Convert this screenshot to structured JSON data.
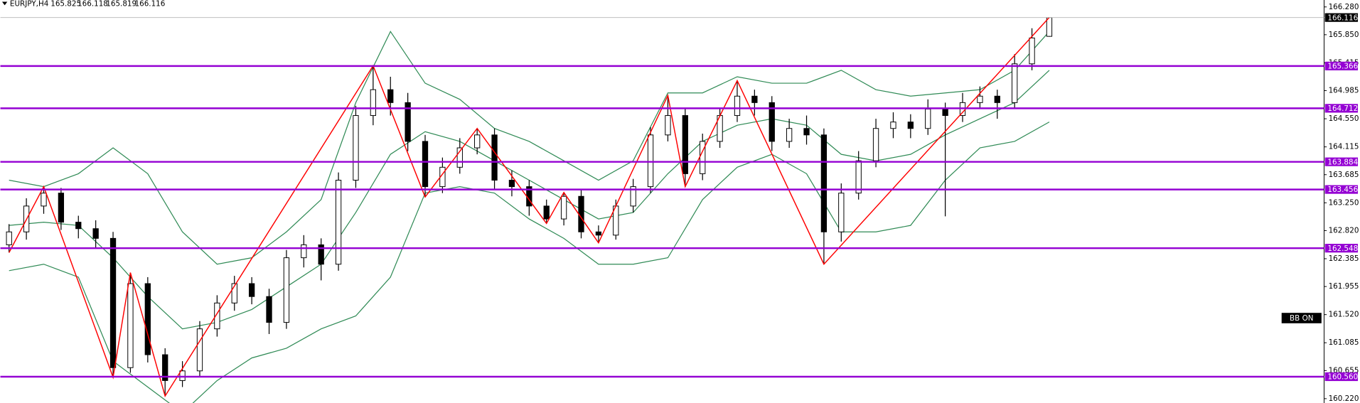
{
  "chart_data": {
    "type": "candlestick",
    "symbol": "EURJPY,H4",
    "indicator_badge": "BB ON",
    "bull_color": "#ffffff",
    "bear_color": "#000000",
    "ylim": [
      160.22,
      166.28
    ],
    "yticks": [
      {
        "value": 166.28,
        "label": "166.280"
      },
      {
        "value": 165.85,
        "label": "165.850"
      },
      165.415,
      164.985,
      {
        "value": 164.55,
        "label": "164.550"
      },
      164.115,
      163.685,
      {
        "value": 163.25,
        "label": "163.250"
      },
      {
        "value": 162.82,
        "label": "162.820"
      },
      162.385,
      161.955,
      {
        "value": 161.52,
        "label": "161.520"
      },
      161.085,
      160.655,
      {
        "value": 160.22,
        "label": "160.220"
      }
    ],
    "open": [
      162.6,
      162.8,
      163.2,
      163.4,
      162.95,
      162.85,
      162.7,
      160.7,
      162.0,
      160.9,
      160.5,
      160.65,
      161.3,
      161.7,
      162.0,
      161.8,
      161.4,
      162.4,
      162.6,
      162.3,
      163.6,
      164.6,
      165.0,
      164.8,
      164.2,
      163.5,
      163.8,
      164.1,
      164.3,
      163.6,
      163.5,
      163.2,
      163.0,
      163.35,
      162.8,
      162.75,
      163.2,
      163.5,
      164.3,
      164.6,
      163.7,
      164.2,
      164.6,
      164.9,
      164.8,
      164.2,
      164.4,
      164.3,
      162.8,
      163.4,
      163.9,
      164.4,
      164.5,
      164.4,
      164.7,
      164.6,
      164.8,
      164.9,
      164.8,
      165.4,
      165.825
    ],
    "high": [
      162.92,
      163.32,
      163.5,
      163.48,
      163.05,
      162.98,
      162.8,
      162.17,
      162.1,
      161.0,
      160.8,
      161.42,
      161.82,
      162.12,
      162.1,
      161.92,
      162.52,
      162.75,
      162.7,
      163.72,
      164.75,
      165.37,
      165.2,
      164.95,
      164.3,
      163.95,
      164.25,
      164.4,
      164.4,
      163.75,
      163.6,
      163.3,
      163.41,
      163.45,
      162.9,
      163.3,
      163.62,
      164.42,
      164.91,
      164.7,
      164.32,
      164.72,
      165.14,
      165.0,
      164.9,
      164.55,
      164.6,
      164.4,
      163.55,
      164.05,
      164.55,
      164.65,
      164.62,
      164.85,
      164.8,
      164.95,
      165.05,
      165.0,
      165.55,
      165.95,
      166.118
    ],
    "low": [
      162.48,
      162.68,
      163.08,
      162.83,
      162.7,
      162.55,
      160.55,
      160.62,
      160.78,
      160.26,
      160.4,
      160.55,
      161.18,
      161.58,
      161.68,
      161.22,
      161.3,
      162.25,
      162.05,
      162.2,
      163.48,
      164.45,
      164.6,
      164.05,
      163.34,
      163.4,
      163.7,
      164.0,
      163.45,
      163.35,
      163.05,
      162.93,
      162.9,
      162.7,
      162.63,
      162.68,
      163.1,
      163.4,
      164.2,
      163.5,
      163.6,
      164.1,
      164.5,
      164.6,
      164.05,
      164.1,
      164.15,
      162.3,
      162.65,
      163.3,
      163.8,
      164.25,
      164.25,
      164.3,
      163.04,
      164.5,
      164.7,
      164.55,
      164.7,
      165.3,
      165.819
    ],
    "close": [
      162.8,
      163.2,
      163.4,
      162.95,
      162.85,
      162.7,
      160.7,
      162.0,
      160.9,
      160.5,
      160.65,
      161.3,
      161.7,
      162.0,
      161.8,
      161.4,
      162.4,
      162.6,
      162.3,
      163.6,
      164.6,
      165.0,
      164.8,
      164.2,
      163.5,
      163.8,
      164.1,
      164.3,
      163.6,
      163.5,
      163.2,
      163.0,
      163.35,
      162.8,
      162.75,
      163.2,
      163.5,
      164.3,
      164.6,
      163.7,
      164.2,
      164.6,
      164.9,
      164.8,
      164.2,
      164.4,
      164.3,
      162.8,
      163.4,
      163.9,
      164.4,
      164.5,
      164.4,
      164.7,
      164.6,
      164.8,
      164.9,
      164.8,
      165.4,
      165.8,
      166.116
    ],
    "bollinger": {
      "color": "#2f8a55",
      "x": [
        0,
        2,
        4,
        6,
        8,
        10,
        12,
        14,
        16,
        18,
        20,
        22,
        24,
        26,
        28,
        30,
        32,
        34,
        36,
        38,
        40,
        42,
        44,
        46,
        48,
        50,
        52,
        54,
        56,
        58,
        60
      ],
      "upper": [
        163.6,
        163.5,
        163.7,
        164.1,
        163.7,
        162.8,
        162.3,
        162.4,
        162.8,
        163.3,
        164.8,
        165.9,
        165.1,
        164.85,
        164.4,
        164.2,
        163.9,
        163.6,
        163.9,
        164.95,
        164.95,
        165.2,
        165.1,
        165.1,
        165.3,
        165.0,
        164.9,
        164.95,
        165.0,
        165.3,
        165.9
      ],
      "middle": [
        162.9,
        162.95,
        162.9,
        162.4,
        161.8,
        161.3,
        161.4,
        161.6,
        161.95,
        162.3,
        163.1,
        164.0,
        164.35,
        164.2,
        163.9,
        163.6,
        163.3,
        163.0,
        163.1,
        163.7,
        164.2,
        164.45,
        164.55,
        164.45,
        164.0,
        163.9,
        164.0,
        164.3,
        164.55,
        164.8,
        165.3
      ],
      "lower": [
        162.2,
        162.3,
        162.1,
        160.8,
        160.4,
        160.0,
        160.5,
        160.85,
        161.0,
        161.3,
        161.5,
        162.1,
        163.4,
        163.5,
        163.4,
        163.0,
        162.7,
        162.3,
        162.3,
        162.4,
        163.3,
        163.8,
        164.0,
        163.7,
        162.8,
        162.8,
        162.9,
        163.6,
        164.1,
        164.2,
        164.5
      ]
    },
    "zigzag": {
      "color": "#ff0000",
      "x": [
        0,
        2,
        6,
        7,
        9,
        21,
        24,
        27,
        31,
        32,
        34,
        38,
        39,
        42,
        47,
        60
      ],
      "values": [
        162.48,
        163.5,
        160.55,
        162.17,
        160.26,
        165.37,
        163.34,
        164.4,
        162.93,
        163.41,
        162.63,
        164.91,
        163.5,
        165.14,
        162.3,
        166.118
      ]
    },
    "levels": {
      "color": "#9400d3",
      "values": [
        165.366,
        164.712,
        163.884,
        163.456,
        {
          "value": 162.548,
          "label": "162.548"
        },
        {
          "value": 160.56,
          "label": "160.560"
        }
      ]
    }
  }
}
